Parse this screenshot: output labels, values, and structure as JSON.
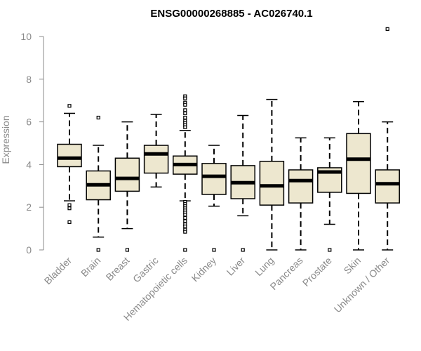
{
  "chart_data": {
    "type": "boxplot",
    "title": "ENSG00000268885 - AC026740.1",
    "ylabel": "Expression",
    "xlabel": "",
    "ylim": [
      0,
      10
    ],
    "yticks": [
      0,
      2,
      4,
      6,
      8,
      10
    ],
    "grid": false,
    "colors": {
      "box_fill": "#ede7cf",
      "stroke": "#000000",
      "axis": "#8a8a8a"
    },
    "categories": [
      "Bladder",
      "Brain",
      "Breast",
      "Gastric",
      "Hematopoietic cells",
      "Kidney",
      "Liver",
      "Lung",
      "Pancreas",
      "Prostate",
      "Skin",
      "Unknown / Other"
    ],
    "boxes": [
      {
        "category": "Bladder",
        "whisker_low": 2.3,
        "q1": 3.9,
        "median": 4.3,
        "q3": 4.95,
        "whisker_high": 6.4,
        "outliers": [
          6.75,
          2.1,
          1.95,
          1.3
        ]
      },
      {
        "category": "Brain",
        "whisker_low": 0.6,
        "q1": 2.35,
        "median": 3.05,
        "q3": 3.7,
        "whisker_high": 4.9,
        "outliers": [
          6.2,
          0.0
        ]
      },
      {
        "category": "Breast",
        "whisker_low": 1.0,
        "q1": 2.75,
        "median": 3.35,
        "q3": 4.3,
        "whisker_high": 6.0,
        "outliers": [
          0.0
        ]
      },
      {
        "category": "Gastric",
        "whisker_low": 2.95,
        "q1": 3.6,
        "median": 4.5,
        "q3": 4.9,
        "whisker_high": 6.35,
        "outliers": []
      },
      {
        "category": "Hematopoietic cells",
        "whisker_low": 2.3,
        "q1": 3.55,
        "median": 4.0,
        "q3": 4.4,
        "whisker_high": 5.6,
        "outliers": [
          7.2,
          7.1,
          6.9,
          6.8,
          6.55,
          6.4,
          6.2,
          6.05,
          5.95,
          5.85,
          5.75,
          2.25,
          2.15,
          2.05,
          1.95,
          1.85,
          1.75,
          1.65,
          1.5,
          1.35,
          1.2,
          1.1,
          0.95,
          0.85,
          0.0
        ]
      },
      {
        "category": "Kidney",
        "whisker_low": 2.05,
        "q1": 2.6,
        "median": 3.45,
        "q3": 4.05,
        "whisker_high": 4.9,
        "outliers": [
          0.0
        ]
      },
      {
        "category": "Liver",
        "whisker_low": 1.6,
        "q1": 2.4,
        "median": 3.15,
        "q3": 3.95,
        "whisker_high": 6.3,
        "outliers": [
          0.0
        ]
      },
      {
        "category": "Lung",
        "whisker_low": 0.0,
        "q1": 2.1,
        "median": 3.0,
        "q3": 4.15,
        "whisker_high": 7.05,
        "outliers": []
      },
      {
        "category": "Pancreas",
        "whisker_low": 0.0,
        "q1": 2.2,
        "median": 3.25,
        "q3": 3.75,
        "whisker_high": 5.25,
        "outliers": []
      },
      {
        "category": "Prostate",
        "whisker_low": 1.2,
        "q1": 2.7,
        "median": 3.65,
        "q3": 3.85,
        "whisker_high": 5.25,
        "outliers": [
          0.0
        ]
      },
      {
        "category": "Skin",
        "whisker_low": 0.0,
        "q1": 2.65,
        "median": 4.25,
        "q3": 5.45,
        "whisker_high": 6.95,
        "outliers": []
      },
      {
        "category": "Unknown / Other",
        "whisker_low": 0.0,
        "q1": 2.2,
        "median": 3.1,
        "q3": 3.75,
        "whisker_high": 6.0,
        "outliers": [
          10.35
        ]
      }
    ]
  }
}
